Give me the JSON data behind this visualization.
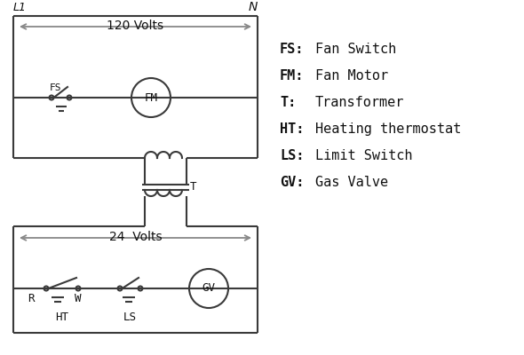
{
  "background_color": "#ffffff",
  "line_color": "#3a3a3a",
  "arrow_color": "#888888",
  "text_color": "#111111",
  "legend_items": [
    [
      "FS:",
      "Fan Switch"
    ],
    [
      "FM:",
      "Fan Motor"
    ],
    [
      "T:",
      "Transformer"
    ],
    [
      "HT:",
      "Heating thermostat"
    ],
    [
      "LS:",
      "Limit Switch"
    ],
    [
      "GV:",
      "Gas Valve"
    ]
  ],
  "L1": "L1",
  "N": "N",
  "volts_120": "120 Volts",
  "volts_24": "24  Volts",
  "T_label": "T",
  "FS_label": "FS",
  "FM_label": "FM",
  "R_label": "R",
  "W_label": "W",
  "HT_label": "HT",
  "LS_label": "LS",
  "GV_label": "GV"
}
